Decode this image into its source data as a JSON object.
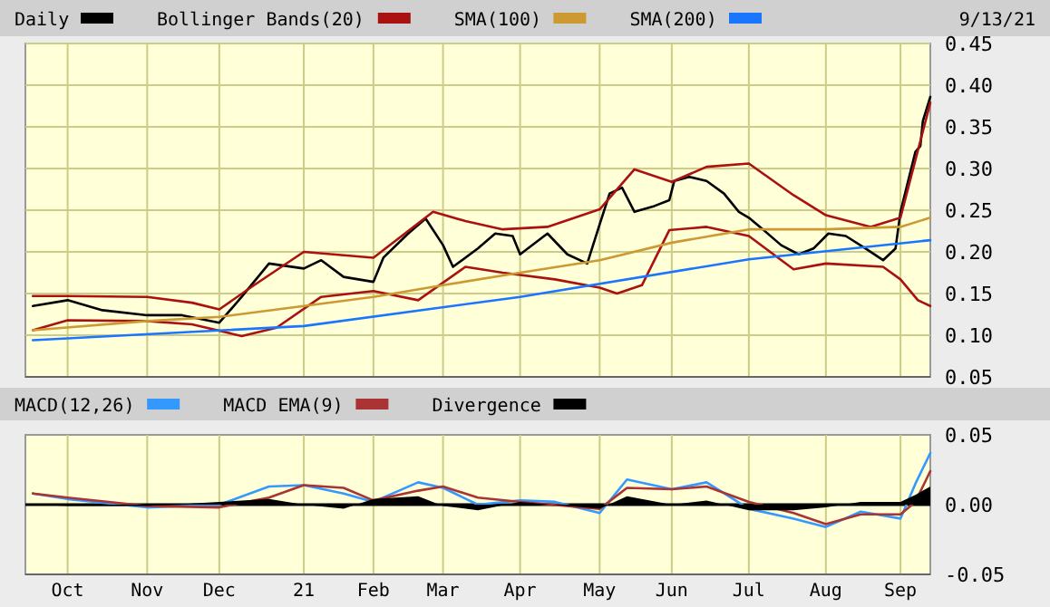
{
  "chart_data": [
    {
      "type": "line",
      "legend": "top",
      "grid": true,
      "tick_labels": "y",
      "annotations": [
        "9/13/21"
      ],
      "xlim": [
        "2020-09-14",
        "2021-09-13"
      ],
      "xticks": [
        {
          "value": "2020-10-01",
          "label": null
        },
        {
          "value": "2020-11-02",
          "label": null
        },
        {
          "value": "2020-12-01",
          "label": null
        },
        {
          "value": "2021-01-04",
          "label": null
        },
        {
          "value": "2021-02-01",
          "label": null
        },
        {
          "value": "2021-03-01",
          "label": null
        },
        {
          "value": "2021-04-01",
          "label": null
        },
        {
          "value": "2021-05-03",
          "label": null
        },
        {
          "value": "2021-06-01",
          "label": null
        },
        {
          "value": "2021-07-02",
          "label": null
        },
        {
          "value": "2021-08-02",
          "label": null
        },
        {
          "value": "2021-09-01",
          "label": null
        }
      ],
      "ylim": [
        0.05,
        0.45
      ],
      "yticks": [
        {
          "value": 0.05,
          "label": "0.05"
        },
        {
          "value": 0.1,
          "label": "0.10"
        },
        {
          "value": 0.15,
          "label": "0.15"
        },
        {
          "value": 0.2,
          "label": "0.20"
        },
        {
          "value": 0.25,
          "label": "0.25"
        },
        {
          "value": 0.3,
          "label": "0.30"
        },
        {
          "value": 0.35,
          "label": "0.35"
        },
        {
          "value": 0.4,
          "label": "0.40"
        },
        {
          "value": 0.45,
          "label": "0.45"
        }
      ],
      "series": [
        {
          "name": "Daily",
          "color": "#000000",
          "x": [
            "2020-09-17",
            "2020-10-01",
            "2020-10-15",
            "2020-11-02",
            "2020-11-16",
            "2020-12-01",
            "2020-12-10",
            "2020-12-21",
            "2021-01-04",
            "2021-01-11",
            "2021-01-20",
            "2021-02-01",
            "2021-02-05",
            "2021-02-15",
            "2021-02-22",
            "2021-03-01",
            "2021-03-05",
            "2021-03-15",
            "2021-03-22",
            "2021-03-29",
            "2021-04-01",
            "2021-04-12",
            "2021-04-20",
            "2021-04-28",
            "2021-05-03",
            "2021-05-07",
            "2021-05-12",
            "2021-05-17",
            "2021-05-25",
            "2021-05-31",
            "2021-06-02",
            "2021-06-08",
            "2021-06-15",
            "2021-06-22",
            "2021-06-28",
            "2021-07-02",
            "2021-07-08",
            "2021-07-15",
            "2021-07-22",
            "2021-07-28",
            "2021-08-03",
            "2021-08-10",
            "2021-08-18",
            "2021-08-25",
            "2021-08-30",
            "2021-09-01",
            "2021-09-07",
            "2021-09-09",
            "2021-09-10",
            "2021-09-13"
          ],
          "values": [
            0.135,
            0.142,
            0.13,
            0.124,
            0.124,
            0.115,
            0.146,
            0.186,
            0.18,
            0.19,
            0.17,
            0.164,
            0.193,
            0.222,
            0.24,
            0.208,
            0.182,
            0.204,
            0.222,
            0.219,
            0.197,
            0.222,
            0.197,
            0.186,
            0.233,
            0.27,
            0.277,
            0.248,
            0.255,
            0.262,
            0.285,
            0.29,
            0.285,
            0.27,
            0.248,
            0.241,
            0.226,
            0.208,
            0.197,
            0.204,
            0.222,
            0.219,
            0.204,
            0.19,
            0.204,
            0.248,
            0.32,
            0.327,
            0.357,
            0.386
          ]
        },
        {
          "name": "Bollinger Bands(20)",
          "color": "#aa1111",
          "x": [
            "2020-09-17",
            "2020-10-01",
            "2020-11-02",
            "2020-11-20",
            "2020-12-01",
            "2020-12-15",
            "2021-01-04",
            "2021-02-01",
            "2021-02-25",
            "2021-03-10",
            "2021-03-25",
            "2021-04-12",
            "2021-05-03",
            "2021-05-17",
            "2021-06-01",
            "2021-06-15",
            "2021-07-02",
            "2021-07-20",
            "2021-08-02",
            "2021-08-20",
            "2021-09-01",
            "2021-09-13"
          ],
          "values": [
            0.147,
            0.147,
            0.146,
            0.139,
            0.131,
            0.16,
            0.2,
            0.193,
            0.248,
            0.237,
            0.227,
            0.23,
            0.251,
            0.299,
            0.284,
            0.302,
            0.306,
            0.268,
            0.244,
            0.23,
            0.241,
            0.379
          ]
        },
        {
          "color": "#aa1111",
          "x": [
            "2020-09-17",
            "2020-10-01",
            "2020-11-02",
            "2020-11-20",
            "2020-12-10",
            "2020-12-24",
            "2021-01-11",
            "2021-02-01",
            "2021-02-19",
            "2021-03-10",
            "2021-03-25",
            "2021-04-15",
            "2021-05-03",
            "2021-05-10",
            "2021-05-20",
            "2021-05-31",
            "2021-06-15",
            "2021-07-02",
            "2021-07-20",
            "2021-08-02",
            "2021-08-25",
            "2021-09-01",
            "2021-09-08",
            "2021-09-13"
          ],
          "values": [
            0.106,
            0.118,
            0.117,
            0.113,
            0.099,
            0.109,
            0.146,
            0.153,
            0.142,
            0.182,
            0.175,
            0.167,
            0.157,
            0.15,
            0.16,
            0.226,
            0.23,
            0.219,
            0.179,
            0.186,
            0.182,
            0.167,
            0.142,
            0.135
          ]
        },
        {
          "name": "SMA(100)",
          "color": "#cc9933",
          "x": [
            "2020-09-17",
            "2020-11-02",
            "2020-12-01",
            "2021-01-04",
            "2021-02-01",
            "2021-03-01",
            "2021-04-01",
            "2021-05-03",
            "2021-06-01",
            "2021-07-02",
            "2021-08-02",
            "2021-09-01",
            "2021-09-13"
          ],
          "values": [
            0.106,
            0.117,
            0.122,
            0.135,
            0.146,
            0.16,
            0.175,
            0.19,
            0.211,
            0.227,
            0.227,
            0.23,
            0.241
          ]
        },
        {
          "name": "SMA(200)",
          "color": "#1a75ff",
          "x": [
            "2020-09-17",
            "2021-01-04",
            "2021-04-01",
            "2021-07-02",
            "2021-09-13"
          ],
          "values": [
            0.094,
            0.111,
            0.146,
            0.191,
            0.214
          ]
        }
      ]
    },
    {
      "type": "line",
      "legend": "top",
      "grid": "x",
      "xlim": [
        "2020-09-14",
        "2021-09-13"
      ],
      "xticks": [
        {
          "value": "2020-10-01",
          "label": "Oct"
        },
        {
          "value": "2020-11-02",
          "label": "Nov"
        },
        {
          "value": "2020-12-01",
          "label": "Dec"
        },
        {
          "value": "2021-01-04",
          "label": "21"
        },
        {
          "value": "2021-02-01",
          "label": "Feb"
        },
        {
          "value": "2021-03-01",
          "label": "Mar"
        },
        {
          "value": "2021-04-01",
          "label": "Apr"
        },
        {
          "value": "2021-05-03",
          "label": "May"
        },
        {
          "value": "2021-06-01",
          "label": "Jun"
        },
        {
          "value": "2021-07-02",
          "label": "Jul"
        },
        {
          "value": "2021-08-02",
          "label": "Aug"
        },
        {
          "value": "2021-09-01",
          "label": "Sep"
        }
      ],
      "ylim": [
        -0.05,
        0.05
      ],
      "yticks": [
        {
          "value": -0.05,
          "label": "-0.05"
        },
        {
          "value": 0,
          "label": "0.00"
        },
        {
          "value": 0.05,
          "label": "0.05"
        }
      ],
      "ref_lines": [
        {
          "axis": "y",
          "value": 0,
          "color": "#000000"
        }
      ],
      "series": [
        {
          "name": "MACD(12,26)",
          "color": "#3399ff",
          "x": [
            "2020-09-17",
            "2020-10-01",
            "2020-11-02",
            "2020-12-01",
            "2020-12-21",
            "2021-01-04",
            "2021-01-20",
            "2021-02-01",
            "2021-02-19",
            "2021-03-01",
            "2021-03-15",
            "2021-04-01",
            "2021-04-15",
            "2021-05-03",
            "2021-05-14",
            "2021-06-01",
            "2021-06-15",
            "2021-07-02",
            "2021-07-20",
            "2021-08-02",
            "2021-08-16",
            "2021-09-01",
            "2021-09-07",
            "2021-09-13"
          ],
          "values": [
            0.008,
            0.004,
            -0.002,
            0,
            0.013,
            0.014,
            0.008,
            0.002,
            0.016,
            0.012,
            0,
            0.003,
            0.002,
            -0.006,
            0.018,
            0.011,
            0.016,
            -0.003,
            -0.01,
            -0.016,
            -0.005,
            -0.01,
            0.015,
            0.037
          ]
        },
        {
          "name": "MACD EMA(9)",
          "color": "#aa3333",
          "x": [
            "2020-09-17",
            "2020-10-01",
            "2020-11-02",
            "2020-12-01",
            "2020-12-21",
            "2021-01-04",
            "2021-01-20",
            "2021-02-01",
            "2021-02-19",
            "2021-03-01",
            "2021-03-15",
            "2021-04-01",
            "2021-05-03",
            "2021-05-14",
            "2021-06-01",
            "2021-06-15",
            "2021-07-02",
            "2021-07-20",
            "2021-08-02",
            "2021-08-16",
            "2021-09-01",
            "2021-09-07",
            "2021-09-13"
          ],
          "values": [
            0.008,
            0.005,
            -0.001,
            -0.002,
            0.005,
            0.014,
            0.012,
            0.003,
            0.01,
            0.013,
            0.005,
            0.002,
            -0.003,
            0.012,
            0.011,
            0.013,
            0.002,
            -0.006,
            -0.014,
            -0.007,
            -0.007,
            0.002,
            0.024
          ]
        },
        {
          "name": "Divergence",
          "type": "area",
          "color": "#000000",
          "x": [
            "2020-09-17",
            "2020-10-01",
            "2020-11-02",
            "2020-12-01",
            "2020-12-21",
            "2021-01-04",
            "2021-01-20",
            "2021-02-01",
            "2021-02-19",
            "2021-03-01",
            "2021-03-15",
            "2021-04-01",
            "2021-05-03",
            "2021-05-14",
            "2021-06-01",
            "2021-06-15",
            "2021-07-02",
            "2021-07-20",
            "2021-08-02",
            "2021-08-16",
            "2021-09-01",
            "2021-09-07",
            "2021-09-13"
          ],
          "values": [
            0,
            -0.001,
            -0.001,
            0.002,
            0.004,
            0,
            -0.003,
            0.004,
            0.006,
            -0.001,
            -0.004,
            0.002,
            -0.003,
            0.006,
            0,
            0.003,
            -0.004,
            -0.004,
            -0.002,
            0.002,
            0.002,
            0.007,
            0.013
          ]
        }
      ]
    }
  ]
}
